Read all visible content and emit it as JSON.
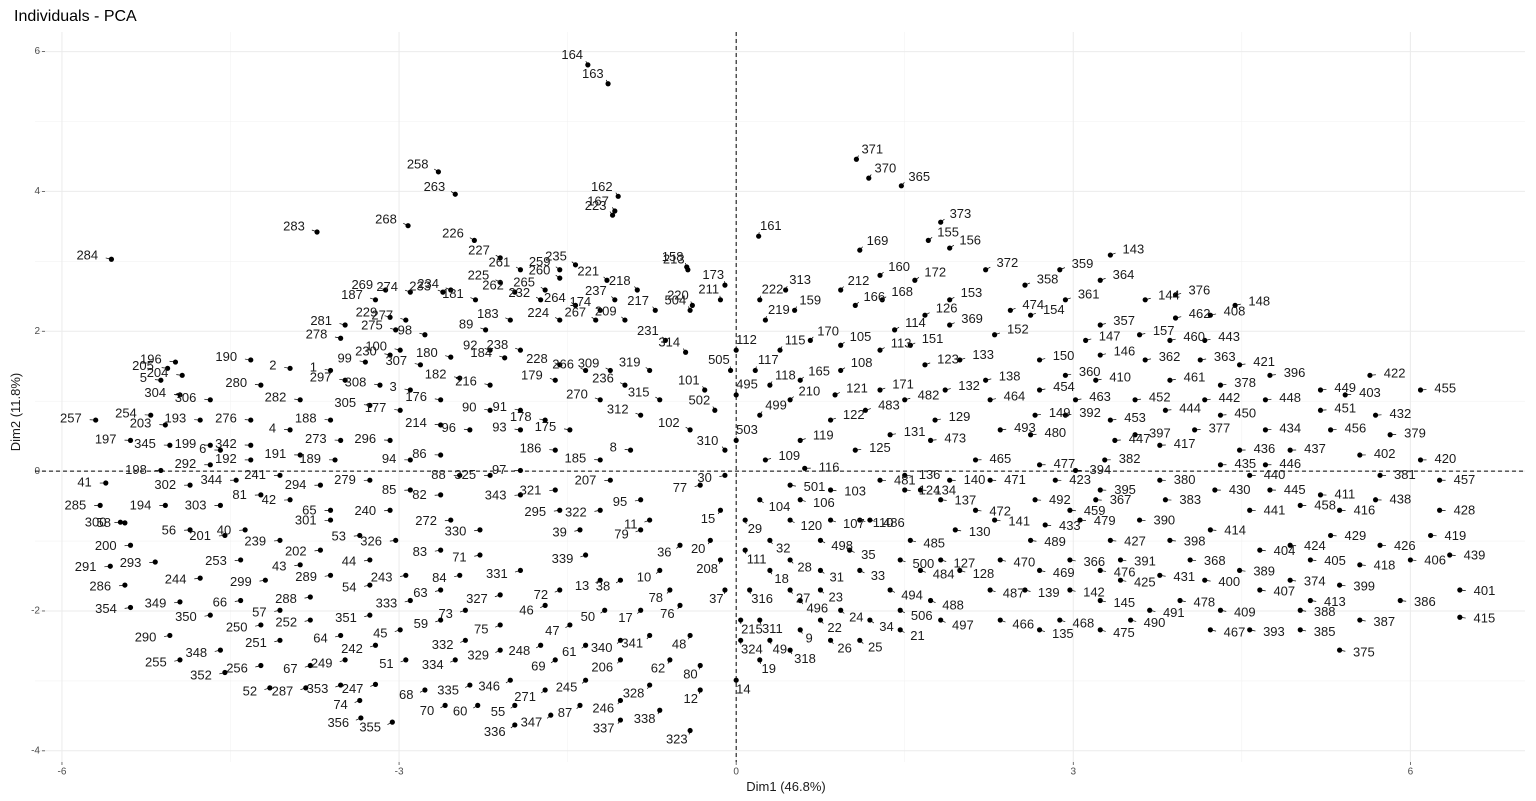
{
  "chart_data": {
    "type": "scatter",
    "title": "Individuals - PCA",
    "x_label": "Dim1 (46.8%)",
    "y_label": "Dim2 (11.8%)",
    "color": "#000000",
    "grid": true,
    "xlim": [
      -6.24,
      7.02
    ],
    "ylim": [
      -4.16,
      6.28
    ],
    "xticks": [
      -6,
      -3,
      0,
      3,
      6
    ],
    "yticks": [
      -4,
      -2,
      0,
      2,
      4,
      6
    ],
    "labels": [
      "164",
      "163",
      "371",
      "370",
      "365",
      "373",
      "155",
      "156",
      "161",
      "258",
      "263",
      "162",
      "167",
      "284",
      "283",
      "268",
      "226",
      "227",
      "261",
      "223",
      "221",
      "220",
      "158",
      "213",
      "196",
      "205",
      "204",
      "269",
      "274",
      "187",
      "229",
      "277",
      "281",
      "275",
      "278",
      "233",
      "234",
      "225",
      "181",
      "262",
      "232",
      "259",
      "265",
      "235",
      "260",
      "174",
      "237",
      "218",
      "264",
      "224",
      "267",
      "209",
      "217",
      "231",
      "183",
      "89",
      "98",
      "100",
      "99",
      "1",
      "230",
      "307",
      "180",
      "92",
      "184",
      "238",
      "228",
      "266",
      "309",
      "319",
      "314",
      "504",
      "211",
      "173",
      "222",
      "313",
      "219",
      "159",
      "112",
      "115",
      "117",
      "505",
      "101",
      "495",
      "118",
      "165",
      "170",
      "212",
      "169",
      "160",
      "166",
      "168",
      "105",
      "108",
      "114",
      "113",
      "121",
      "122",
      "210",
      "499",
      "502",
      "503",
      "119",
      "109",
      "116",
      "171",
      "483",
      "125",
      "131",
      "482",
      "123",
      "151",
      "126",
      "172",
      "153",
      "369",
      "133",
      "132",
      "129",
      "473",
      "152",
      "138",
      "464",
      "493",
      "465",
      "372",
      "358",
      "474",
      "154",
      "359",
      "361",
      "143",
      "364",
      "357",
      "147",
      "150",
      "360",
      "454",
      "463",
      "149",
      "392",
      "480",
      "146",
      "410",
      "453",
      "447",
      "144",
      "376",
      "157",
      "462",
      "362",
      "460",
      "408",
      "148",
      "443",
      "363",
      "461",
      "452",
      "444",
      "442",
      "421",
      "378",
      "396",
      "450",
      "448",
      "377",
      "397",
      "417",
      "436",
      "434",
      "449",
      "422",
      "403",
      "451",
      "455",
      "432",
      "456",
      "379",
      "437",
      "402",
      "420",
      "446",
      "381",
      "457",
      "445",
      "440",
      "435",
      "382",
      "394",
      "380",
      "430",
      "383",
      "411",
      "438",
      "458",
      "441",
      "416",
      "428",
      "429",
      "419",
      "426",
      "414",
      "404",
      "424",
      "405",
      "418",
      "406",
      "439",
      "389",
      "374",
      "399",
      "401",
      "386",
      "413",
      "415",
      "387",
      "407",
      "388",
      "385",
      "375",
      "393",
      "409",
      "400",
      "467",
      "478",
      "368",
      "398",
      "390",
      "431",
      "491",
      "490",
      "391",
      "425",
      "427",
      "476",
      "145",
      "475",
      "367",
      "395",
      "366",
      "142",
      "468",
      "479",
      "459",
      "423",
      "433",
      "492",
      "469",
      "139",
      "135",
      "489",
      "477",
      "471",
      "141",
      "472",
      "470",
      "487",
      "466",
      "140",
      "137",
      "130",
      "128",
      "127",
      "134",
      "136",
      "124",
      "485",
      "484",
      "500",
      "481",
      "486",
      "488",
      "497",
      "506",
      "21",
      "494",
      "34",
      "25",
      "33",
      "35",
      "110",
      "103",
      "106",
      "501",
      "107",
      "498",
      "120",
      "104",
      "31",
      "23",
      "24",
      "26",
      "22",
      "496",
      "9",
      "318",
      "28",
      "27",
      "18",
      "32",
      "29",
      "111",
      "316",
      "311",
      "49",
      "19",
      "215",
      "324",
      "14",
      "37",
      "208",
      "20",
      "15",
      "30",
      "310",
      "77",
      "102",
      "315",
      "312",
      "236",
      "270",
      "8",
      "185",
      "207",
      "179",
      "178",
      "175",
      "186",
      "93",
      "91",
      "90",
      "216",
      "182",
      "176",
      "3",
      "308",
      "297",
      "2",
      "190",
      "280",
      "282",
      "305",
      "177",
      "188",
      "214",
      "96",
      "296",
      "273",
      "4",
      "276",
      "306",
      "304",
      "5",
      "193",
      "254",
      "203",
      "257",
      "197",
      "345",
      "199",
      "6",
      "342",
      "191",
      "192",
      "189",
      "94",
      "86",
      "88",
      "325",
      "97",
      "343",
      "321",
      "198",
      "292",
      "344",
      "241",
      "294",
      "279",
      "85",
      "82",
      "302",
      "41",
      "81",
      "42",
      "65",
      "240",
      "303",
      "194",
      "285",
      "300",
      "58",
      "56",
      "201",
      "40",
      "200",
      "239",
      "301",
      "272",
      "330",
      "295",
      "322",
      "95",
      "11",
      "79",
      "36",
      "39",
      "339",
      "10",
      "78",
      "76",
      "38",
      "13",
      "50",
      "17",
      "48",
      "80",
      "12",
      "340",
      "341",
      "62",
      "328",
      "338",
      "323",
      "206",
      "246",
      "337",
      "61",
      "245",
      "87",
      "47",
      "72",
      "46",
      "69",
      "271",
      "347",
      "248",
      "331",
      "327",
      "75",
      "329",
      "346",
      "55",
      "336",
      "71",
      "84",
      "73",
      "332",
      "334",
      "335",
      "60",
      "70",
      "63",
      "59",
      "68",
      "83",
      "326",
      "53",
      "44",
      "243",
      "333",
      "54",
      "351",
      "45",
      "51",
      "242",
      "247",
      "353",
      "249",
      "64",
      "74",
      "356",
      "355",
      "202",
      "289",
      "43",
      "288",
      "252",
      "67",
      "287",
      "57",
      "299",
      "253",
      "244",
      "66",
      "250",
      "251",
      "256",
      "52",
      "293",
      "291",
      "286",
      "354",
      "349",
      "350",
      "290",
      "348",
      "255",
      "352"
    ],
    "x": [
      -1.32,
      -1.14,
      1.07,
      1.18,
      1.47,
      1.82,
      1.71,
      1.9,
      0.2,
      -2.65,
      -2.5,
      -1.05,
      -1.08,
      -5.56,
      -3.73,
      -2.92,
      -2.33,
      -2.1,
      -1.92,
      -1.1,
      -1.15,
      -0.39,
      -0.44,
      -0.43,
      -4.99,
      -5.06,
      -4.93,
      -3.12,
      -2.9,
      -3.21,
      -3.08,
      -2.94,
      -3.48,
      -3.03,
      -3.52,
      -2.61,
      -2.54,
      -2.1,
      -2.32,
      -1.97,
      -1.74,
      -1.57,
      -1.7,
      -1.43,
      -1.57,
      -1.21,
      -1.08,
      -0.88,
      -1.43,
      -1.57,
      -1.25,
      -0.99,
      -0.72,
      -0.63,
      -2.01,
      -2.23,
      -2.77,
      -2.99,
      -3.3,
      -3.61,
      -3.08,
      -2.81,
      -2.54,
      -2.19,
      -2.06,
      -1.92,
      -1.57,
      -1.34,
      -1.12,
      -0.77,
      -0.45,
      -0.41,
      -0.14,
      -0.1,
      0.21,
      0.44,
      0.26,
      0.52,
      0.0,
      0.39,
      0.17,
      -0.05,
      -0.28,
      0.0,
      0.3,
      0.57,
      0.66,
      0.93,
      1.1,
      1.28,
      1.06,
      1.3,
      0.93,
      0.93,
      1.41,
      1.28,
      0.88,
      0.84,
      0.48,
      0.21,
      -0.19,
      0.0,
      0.57,
      0.26,
      0.61,
      1.28,
      1.15,
      1.06,
      1.37,
      1.5,
      1.68,
      1.55,
      1.68,
      1.59,
      1.9,
      1.9,
      1.99,
      1.86,
      1.77,
      1.73,
      2.3,
      2.22,
      2.26,
      2.35,
      2.13,
      2.22,
      2.57,
      2.44,
      2.62,
      2.88,
      2.93,
      3.33,
      3.24,
      3.24,
      3.11,
      2.7,
      2.93,
      2.7,
      3.02,
      2.66,
      2.93,
      2.62,
      3.24,
      3.2,
      3.33,
      3.37,
      3.64,
      3.91,
      3.59,
      3.91,
      3.64,
      3.86,
      4.22,
      4.44,
      4.17,
      4.13,
      3.86,
      3.55,
      3.82,
      4.17,
      4.48,
      4.31,
      4.75,
      4.31,
      4.71,
      4.08,
      3.55,
      3.77,
      4.48,
      4.71,
      5.2,
      5.64,
      5.42,
      5.2,
      6.09,
      5.69,
      5.29,
      5.82,
      4.93,
      5.55,
      6.09,
      4.71,
      5.73,
      6.26,
      4.75,
      4.57,
      4.31,
      3.28,
      3.02,
      3.77,
      4.26,
      3.82,
      5.2,
      5.69,
      5.02,
      4.57,
      5.37,
      6.26,
      5.29,
      6.18,
      5.73,
      4.22,
      4.66,
      4.93,
      5.11,
      5.55,
      6.0,
      6.35,
      4.48,
      4.93,
      5.37,
      6.44,
      5.91,
      5.11,
      6.44,
      5.55,
      4.66,
      5.02,
      5.02,
      5.37,
      4.57,
      4.31,
      4.17,
      4.22,
      3.95,
      4.04,
      3.86,
      3.59,
      3.77,
      3.68,
      3.51,
      3.42,
      3.42,
      3.33,
      3.24,
      3.24,
      3.24,
      3.2,
      3.24,
      2.97,
      2.97,
      2.88,
      3.06,
      2.97,
      2.84,
      2.75,
      2.66,
      2.7,
      2.57,
      2.7,
      2.62,
      2.7,
      2.26,
      2.3,
      2.13,
      2.35,
      2.26,
      2.35,
      1.9,
      1.82,
      1.95,
      1.99,
      1.82,
      1.64,
      1.5,
      1.5,
      1.55,
      1.64,
      1.46,
      1.28,
      1.19,
      1.73,
      1.82,
      1.46,
      1.46,
      1.37,
      1.19,
      1.1,
      1.1,
      1.01,
      1.1,
      0.84,
      0.57,
      0.48,
      0.84,
      0.75,
      0.48,
      0.21,
      0.75,
      0.75,
      0.93,
      0.84,
      0.75,
      0.57,
      0.57,
      0.48,
      0.48,
      0.48,
      0.3,
      0.3,
      0.08,
      0.08,
      0.12,
      0.21,
      0.3,
      0.21,
      0.04,
      0.04,
      0.0,
      -0.1,
      -0.14,
      -0.23,
      -0.14,
      -0.1,
      -0.1,
      -0.32,
      -0.41,
      -0.68,
      -0.85,
      -0.99,
      -1.21,
      -0.94,
      -1.21,
      -1.12,
      -1.61,
      -1.7,
      -1.48,
      -1.61,
      -1.92,
      -1.92,
      -2.19,
      -2.19,
      -2.46,
      -2.63,
      -2.9,
      -3.17,
      -3.48,
      -3.97,
      -4.32,
      -4.23,
      -3.88,
      -3.26,
      -2.99,
      -3.61,
      -2.63,
      -2.37,
      -3.08,
      -3.52,
      -3.97,
      -4.32,
      -4.68,
      -4.95,
      -5.12,
      -4.77,
      -5.21,
      -5.08,
      -5.7,
      -5.39,
      -5.04,
      -4.68,
      -4.59,
      -4.32,
      -3.88,
      -4.32,
      -3.57,
      -2.9,
      -2.63,
      -2.46,
      -2.19,
      -1.92,
      -1.92,
      -1.61,
      -5.12,
      -4.68,
      -4.45,
      -4.06,
      -3.7,
      -3.26,
      -2.9,
      -2.63,
      -4.86,
      -5.61,
      -4.23,
      -3.97,
      -3.61,
      -3.08,
      -4.59,
      -5.08,
      -5.66,
      -5.48,
      -5.44,
      -4.86,
      -4.55,
      -4.37,
      -5.39,
      -4.06,
      -3.61,
      -2.54,
      -2.28,
      -1.57,
      -1.21,
      -0.85,
      -0.77,
      -0.85,
      -0.5,
      -1.39,
      -1.34,
      -0.68,
      -0.59,
      -0.5,
      -1.03,
      -1.21,
      -1.17,
      -0.85,
      -0.41,
      -0.32,
      -0.32,
      -1.03,
      -0.77,
      -0.59,
      -0.77,
      -0.68,
      -0.41,
      -1.03,
      -1.03,
      -1.03,
      -1.34,
      -1.34,
      -1.39,
      -1.48,
      -1.57,
      -1.7,
      -1.61,
      -1.7,
      -1.65,
      -1.74,
      -1.92,
      -2.1,
      -2.1,
      -2.1,
      -2.01,
      -1.97,
      -1.97,
      -2.28,
      -2.46,
      -2.41,
      -2.41,
      -2.5,
      -2.37,
      -2.3,
      -2.59,
      -2.63,
      -2.63,
      -2.77,
      -2.63,
      -3.03,
      -3.35,
      -3.26,
      -2.94,
      -2.9,
      -3.26,
      -3.26,
      -2.99,
      -2.94,
      -3.21,
      -3.21,
      -3.52,
      -3.48,
      -3.52,
      -3.35,
      -3.34,
      -3.06,
      -3.7,
      -3.61,
      -3.88,
      -3.79,
      -3.79,
      -3.79,
      -3.83,
      -4.06,
      -4.19,
      -4.41,
      -4.77,
      -4.41,
      -4.23,
      -4.06,
      -4.23,
      -4.15,
      -5.17,
      -5.57,
      -5.44,
      -5.39,
      -4.95,
      -4.68,
      -5.04,
      -4.59,
      -4.95,
      -4.55
    ],
    "values": [
      5.81,
      5.54,
      4.46,
      4.19,
      4.08,
      3.56,
      3.3,
      3.19,
      3.36,
      4.28,
      3.96,
      3.93,
      3.72,
      3.03,
      3.42,
      3.51,
      3.3,
      3.05,
      2.88,
      3.66,
      2.73,
      2.37,
      2.92,
      2.88,
      1.56,
      1.47,
      1.37,
      2.59,
      2.56,
      2.45,
      2.2,
      2.16,
      2.09,
      2.02,
      1.9,
      2.56,
      2.59,
      2.7,
      2.45,
      2.56,
      2.45,
      2.88,
      2.59,
      2.95,
      2.76,
      2.3,
      2.45,
      2.59,
      2.37,
      2.16,
      2.16,
      2.16,
      2.3,
      1.87,
      2.16,
      2.02,
      1.95,
      1.73,
      1.56,
      1.44,
      1.66,
      1.52,
      1.63,
      1.73,
      1.62,
      1.73,
      1.52,
      1.44,
      1.44,
      1.44,
      1.7,
      2.3,
      2.45,
      2.66,
      2.45,
      2.59,
      2.16,
      2.3,
      1.73,
      1.73,
      1.44,
      1.44,
      1.16,
      1.09,
      1.23,
      1.3,
      1.87,
      2.59,
      3.16,
      2.8,
      2.37,
      2.45,
      1.8,
      1.44,
      2.02,
      1.73,
      1.09,
      0.73,
      1.02,
      0.8,
      0.87,
      0.44,
      0.44,
      0.16,
      0.04,
      1.16,
      0.87,
      0.3,
      0.52,
      1.02,
      1.52,
      1.8,
      2.23,
      2.73,
      2.45,
      2.09,
      1.59,
      1.16,
      0.73,
      0.44,
      1.95,
      1.3,
      1.02,
      0.59,
      0.16,
      2.88,
      2.66,
      2.3,
      2.23,
      2.88,
      2.45,
      3.09,
      2.73,
      2.09,
      1.87,
      1.59,
      1.37,
      1.16,
      1.02,
      0.8,
      0.8,
      0.52,
      1.66,
      1.3,
      0.73,
      0.44,
      2.45,
      2.52,
      1.95,
      2.19,
      1.59,
      1.87,
      2.23,
      2.37,
      1.87,
      1.59,
      1.3,
      1.02,
      0.87,
      1.02,
      1.52,
      1.23,
      1.37,
      0.8,
      1.02,
      0.59,
      0.52,
      0.37,
      0.3,
      0.59,
      1.16,
      1.37,
      1.09,
      0.87,
      1.16,
      0.8,
      0.59,
      0.52,
      0.3,
      0.23,
      0.16,
      0.09,
      -0.06,
      -0.13,
      -0.27,
      -0.06,
      0.09,
      0.16,
      0.01,
      -0.13,
      -0.27,
      -0.41,
      -0.34,
      -0.41,
      -0.49,
      -0.56,
      -0.56,
      -0.56,
      -0.92,
      -0.92,
      -1.06,
      -0.84,
      -1.13,
      -1.06,
      -1.27,
      -1.34,
      -1.27,
      -1.2,
      -1.42,
      -1.56,
      -1.63,
      -1.7,
      -1.85,
      -1.85,
      -2.09,
      -2.13,
      -1.7,
      -1.99,
      -2.27,
      -2.56,
      -2.27,
      -1.99,
      -1.56,
      -2.27,
      -1.85,
      -1.27,
      -0.99,
      -0.7,
      -1.49,
      -1.99,
      -2.13,
      -1.27,
      -1.56,
      -0.99,
      -1.42,
      -1.85,
      -2.27,
      -0.41,
      -0.27,
      -1.27,
      -1.7,
      -2.13,
      -0.7,
      -0.56,
      -0.13,
      -0.77,
      -0.41,
      -1.42,
      -1.7,
      -2.27,
      -0.99,
      0.09,
      -0.13,
      -0.7,
      -0.56,
      -1.27,
      -1.7,
      -2.13,
      -0.13,
      -0.41,
      -0.84,
      -1.42,
      -1.27,
      -0.27,
      -0.06,
      -0.27,
      -0.99,
      -1.42,
      -1.27,
      -0.13,
      -0.7,
      -1.85,
      -2.13,
      -1.99,
      -2.27,
      -1.7,
      -2.13,
      -2.42,
      -1.42,
      -1.13,
      -0.7,
      -0.27,
      -0.41,
      -0.2,
      -0.7,
      -0.99,
      -0.7,
      -0.41,
      -1.42,
      -1.7,
      -1.99,
      -2.42,
      -2.13,
      -1.85,
      -2.27,
      -2.56,
      -1.27,
      -1.7,
      -1.42,
      -0.99,
      -0.7,
      -1.13,
      -1.7,
      -2.13,
      -2.42,
      -2.7,
      -2.13,
      -2.42,
      -2.99,
      -1.7,
      -1.27,
      -0.99,
      -0.56,
      -0.06,
      0.3,
      -0.2,
      0.59,
      1.02,
      0.8,
      1.23,
      1.02,
      0.3,
      0.16,
      -0.13,
      1.3,
      0.73,
      0.59,
      0.3,
      0.59,
      0.87,
      0.87,
      1.23,
      1.33,
      1.02,
      1.16,
      1.23,
      1.3,
      1.47,
      1.59,
      1.23,
      1.02,
      0.94,
      0.87,
      0.73,
      0.66,
      0.59,
      0.44,
      0.44,
      0.59,
      0.73,
      1.02,
      1.09,
      1.3,
      0.73,
      0.8,
      0.66,
      0.73,
      0.44,
      0.37,
      0.37,
      0.3,
      0.37,
      0.23,
      0.16,
      0.16,
      0.16,
      0.23,
      -0.06,
      -0.06,
      0.01,
      -0.34,
      -0.27,
      0.01,
      0.09,
      -0.13,
      -0.06,
      -0.2,
      -0.13,
      -0.27,
      -0.34,
      -0.2,
      -0.17,
      -0.34,
      -0.41,
      -0.56,
      -0.56,
      -0.49,
      -0.49,
      -0.49,
      -0.73,
      -0.74,
      -0.84,
      -0.92,
      -0.84,
      -1.06,
      -0.99,
      -0.7,
      -0.7,
      -0.84,
      -0.56,
      -0.56,
      -0.41,
      -0.7,
      -0.84,
      -1.06,
      -0.84,
      -1.2,
      -1.42,
      -1.7,
      -1.92,
      -1.56,
      -1.56,
      -1.99,
      -1.99,
      -2.35,
      -2.78,
      -3.13,
      -2.42,
      -2.35,
      -2.7,
      -3.06,
      -3.42,
      -3.71,
      -2.7,
      -3.28,
      -3.56,
      -2.49,
      -2.99,
      -3.35,
      -2.2,
      -1.7,
      -1.92,
      -2.7,
      -3.13,
      -3.49,
      -2.49,
      -1.42,
      -1.77,
      -2.2,
      -2.56,
      -2.99,
      -3.35,
      -3.63,
      -1.2,
      -1.49,
      -1.99,
      -2.42,
      -2.7,
      -3.06,
      -3.35,
      -3.35,
      -1.7,
      -2.13,
      -3.13,
      -1.13,
      -0.99,
      -0.92,
      -1.27,
      -1.49,
      -1.85,
      -1.63,
      -2.06,
      -2.27,
      -2.7,
      -2.49,
      -3.05,
      -3.06,
      -2.7,
      -2.35,
      -3.28,
      -3.53,
      -3.59,
      -1.13,
      -1.49,
      -1.34,
      -1.8,
      -2.13,
      -2.78,
      -3.1,
      -1.99,
      -1.56,
      -1.27,
      -1.53,
      -1.85,
      -2.2,
      -2.42,
      -2.78,
      -3.1,
      -1.3,
      -1.36,
      -1.63,
      -1.95,
      -1.87,
      -2.06,
      -2.35,
      -2.56,
      -2.7,
      -2.88
    ]
  }
}
